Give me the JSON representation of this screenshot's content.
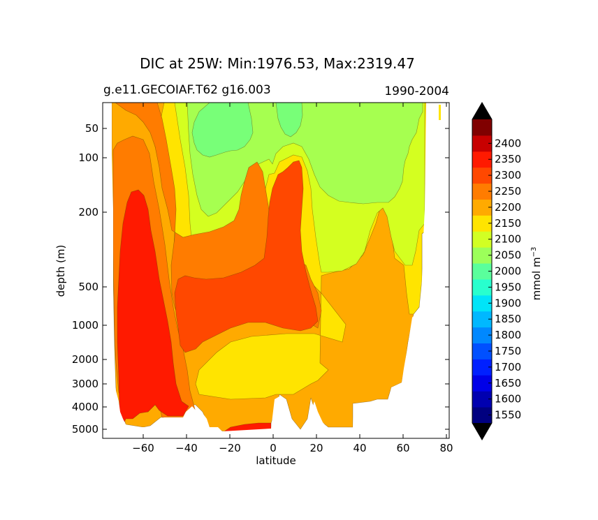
{
  "chart_data": {
    "type": "contour",
    "title": "DIC at 25W: Min:1976.53, Max:2319.47",
    "subtitle_left": "g.e11.GECOIAF.T62 g16.003",
    "subtitle_right": "1990-2004",
    "xlabel": "latitude",
    "ylabel": "depth (m)",
    "xlim": [
      -78,
      81
    ],
    "ylim": [
      5500,
      10
    ],
    "yscale": "log",
    "x_ticks": [
      {
        "value": -60,
        "label": "−60"
      },
      {
        "value": -40,
        "label": "−40"
      },
      {
        "value": -20,
        "label": "−20"
      },
      {
        "value": 0,
        "label": "0"
      },
      {
        "value": 20,
        "label": "20"
      },
      {
        "value": 40,
        "label": "40"
      },
      {
        "value": 60,
        "label": "60"
      },
      {
        "value": 80,
        "label": "80"
      }
    ],
    "y_ticks": [
      {
        "value": 50,
        "label": "50"
      },
      {
        "value": 100,
        "label": "100"
      },
      {
        "value": 200,
        "label": "200"
      },
      {
        "value": 500,
        "label": "500"
      },
      {
        "value": 1000,
        "label": "1000"
      },
      {
        "value": 2000,
        "label": "2000"
      },
      {
        "value": 3000,
        "label": "3000"
      },
      {
        "value": 4000,
        "label": "4000"
      },
      {
        "value": 5000,
        "label": "5000"
      }
    ],
    "field": {
      "min": 1976.53,
      "max": 2319.47,
      "description_regions": [
        {
          "band": "2050-2100",
          "lat_range": [
            -45,
            55
          ],
          "depth_range": [
            10,
            250
          ]
        },
        {
          "band": "2000-2050",
          "lat_range": [
            -38,
            5
          ],
          "depth_range": [
            10,
            190
          ]
        },
        {
          "band": "2250-2300",
          "lat_range": [
            -5,
            20
          ],
          "depth_range": [
            130,
            1000
          ]
        },
        {
          "band": "2300-2350",
          "lat_range": [
            -75,
            -48
          ],
          "depth_range": [
            150,
            4500
          ]
        }
      ]
    },
    "colorbar": {
      "label": "mmol m⁻³",
      "label_main": "mmol m",
      "label_sup": "−3",
      "extend": "both",
      "tick_values": [
        "2400",
        "2350",
        "2300",
        "2250",
        "2200",
        "2150",
        "2100",
        "2050",
        "2000",
        "1950",
        "1900",
        "1850",
        "1800",
        "1750",
        "1700",
        "1650",
        "1600",
        "1550"
      ],
      "levels": [
        1525,
        1575,
        1625,
        1675,
        1725,
        1775,
        1825,
        1875,
        1925,
        1975,
        2025,
        2075,
        2125,
        2175,
        2225,
        2275,
        2325,
        2375,
        2425
      ],
      "colors": [
        "#000080",
        "#0000b0",
        "#0000e8",
        "#0020ff",
        "#0050ff",
        "#0088ff",
        "#00b8ff",
        "#00e4f8",
        "#28ffce",
        "#5aff9c",
        "#9cff5a",
        "#d2ff24",
        "#ffe400",
        "#ffaa00",
        "#ff7c00",
        "#ff4800",
        "#ff1a00",
        "#c80000",
        "#800000"
      ],
      "under_color": "#000080",
      "over_color": "#800000"
    }
  },
  "colors": {
    "c2000": "#78ff78",
    "c2050": "#a6ff50",
    "c2100": "#d4ff20",
    "c2150": "#ffe400",
    "c2200": "#ffaa00",
    "c2250": "#ff7c00",
    "c2300": "#ff4800",
    "c2350": "#ff1a00",
    "background": "#ffffff",
    "axis": "#000000"
  }
}
